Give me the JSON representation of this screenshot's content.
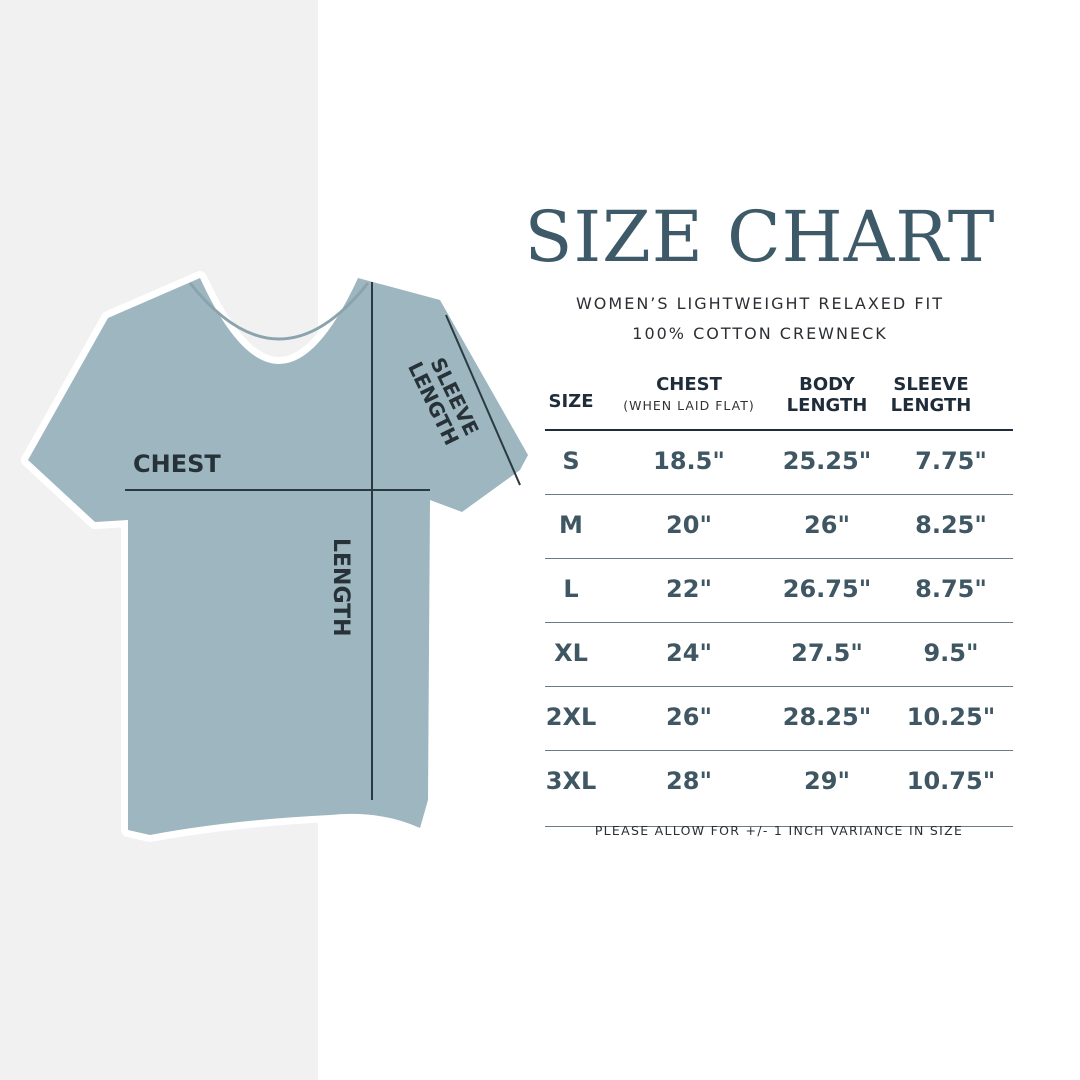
{
  "title": "SIZE CHART",
  "subtitle_line1": "WOMEN’S LIGHTWEIGHT RELAXED FIT",
  "subtitle_line2": "100% COTTON CREWNECK",
  "diagram_labels": {
    "chest": "CHEST",
    "length": "LENGTH",
    "sleeve_line1": "SLEEVE",
    "sleeve_line2": "LENGTH"
  },
  "colors": {
    "shirt": "#9db6bf",
    "title": "#3e5a68",
    "values": "#3f5663",
    "left_panel": "#f1f1f1"
  },
  "table": {
    "headers": {
      "size": "SIZE",
      "chest": "CHEST",
      "chest_note": "(WHEN LAID FLAT)",
      "body_1": "BODY",
      "body_2": "LENGTH",
      "sleeve_1": "SLEEVE",
      "sleeve_2": "LENGTH"
    },
    "rows": [
      {
        "size": "S",
        "chest": "18.5\"",
        "body": "25.25\"",
        "sleeve": "7.75\""
      },
      {
        "size": "M",
        "chest": "20\"",
        "body": "26\"",
        "sleeve": "8.25\""
      },
      {
        "size": "L",
        "chest": "22\"",
        "body": "26.75\"",
        "sleeve": "8.75\""
      },
      {
        "size": "XL",
        "chest": "24\"",
        "body": "27.5\"",
        "sleeve": "9.5\""
      },
      {
        "size": "2XL",
        "chest": "26\"",
        "body": "28.25\"",
        "sleeve": "10.25\""
      },
      {
        "size": "3XL",
        "chest": "28\"",
        "body": "29\"",
        "sleeve": "10.75\""
      }
    ]
  },
  "note": "PLEASE ALLOW FOR +/- 1 INCH VARIANCE IN SIZE"
}
